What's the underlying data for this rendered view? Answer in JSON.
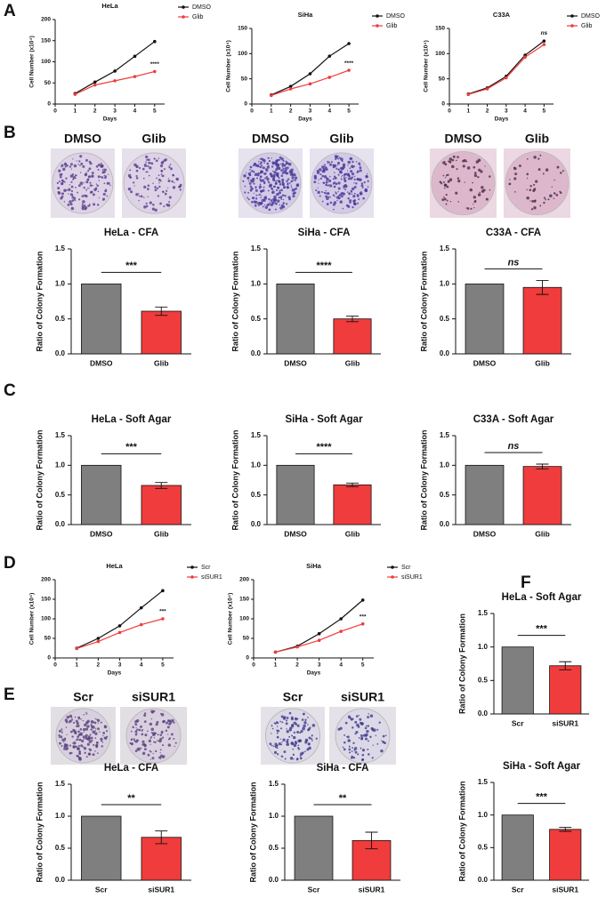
{
  "panel_labels": [
    "A",
    "B",
    "C",
    "D",
    "E",
    "F"
  ],
  "photo_labels": [
    [
      "DMSO",
      "Glib"
    ],
    [
      "DMSO",
      "Glib"
    ],
    [
      "DMSO",
      "Glib"
    ],
    [
      "Scr",
      "siSUR1"
    ],
    [
      "Scr",
      "siSUR1"
    ]
  ],
  "chart_data": [
    {
      "type": "line",
      "title": "HeLa",
      "xlabel": "Days",
      "ylabel": "Cell Number (x10⁴)",
      "x": [
        1,
        2,
        3,
        4,
        5
      ],
      "xlim": [
        0,
        5.5
      ],
      "xticks": [
        0,
        1,
        2,
        3,
        4,
        5
      ],
      "ylim": [
        0,
        200
      ],
      "yticks": [
        0,
        50,
        100,
        150,
        200
      ],
      "annotation": "****",
      "series": [
        {
          "name": "DMSO",
          "color": "#111111",
          "values": [
            25,
            52,
            78,
            113,
            148
          ]
        },
        {
          "name": "Glib",
          "color": "#f03c3c",
          "values": [
            23,
            45,
            55,
            65,
            77
          ]
        }
      ]
    },
    {
      "type": "line",
      "title": "SiHa",
      "xlabel": "Days",
      "ylabel": "Cell Number (x10⁴)",
      "x": [
        1,
        2,
        3,
        4,
        5
      ],
      "xlim": [
        0,
        5.5
      ],
      "xticks": [
        0,
        1,
        2,
        3,
        4,
        5
      ],
      "ylim": [
        0,
        150
      ],
      "yticks": [
        0,
        50,
        100,
        150
      ],
      "annotation": "****",
      "series": [
        {
          "name": "DMSO",
          "color": "#111111",
          "values": [
            18,
            35,
            60,
            95,
            120
          ]
        },
        {
          "name": "Glib",
          "color": "#f03c3c",
          "values": [
            17,
            30,
            40,
            53,
            67
          ]
        }
      ]
    },
    {
      "type": "line",
      "title": "C33A",
      "xlabel": "Days",
      "ylabel": "Cell Number (x10⁴)",
      "x": [
        1,
        2,
        3,
        4,
        5
      ],
      "xlim": [
        0,
        5.5
      ],
      "xticks": [
        0,
        1,
        2,
        3,
        4,
        5
      ],
      "ylim": [
        0,
        150
      ],
      "yticks": [
        0,
        50,
        100,
        150
      ],
      "annotation": "ns",
      "annotation_italic": true,
      "series": [
        {
          "name": "DMSO",
          "color": "#111111",
          "values": [
            20,
            32,
            55,
            97,
            125
          ]
        },
        {
          "name": "Glib",
          "color": "#f03c3c",
          "values": [
            19,
            30,
            52,
            93,
            118
          ]
        }
      ]
    },
    {
      "type": "bar",
      "title": "HeLa - CFA",
      "ylabel": "Ratio of Colony Formation",
      "categories": [
        "DMSO",
        "Glib"
      ],
      "values": [
        1,
        0.61
      ],
      "errors": [
        0,
        0.06
      ],
      "colors": [
        "#7f7f7f",
        "#f03c3c"
      ],
      "ylim": [
        0,
        1.5
      ],
      "yticks": [
        {
          "value": 0,
          "label": "0.0"
        },
        0.5,
        {
          "value": 1,
          "label": "1.0"
        },
        1.5
      ],
      "annotation": "***"
    },
    {
      "type": "bar",
      "title": "SiHa - CFA",
      "ylabel": "Ratio of Colony Formation",
      "categories": [
        "DMSO",
        "Glib"
      ],
      "values": [
        1,
        0.5
      ],
      "errors": [
        0,
        0.04
      ],
      "colors": [
        "#7f7f7f",
        "#f03c3c"
      ],
      "ylim": [
        0,
        1.5
      ],
      "yticks": [
        {
          "value": 0,
          "label": "0.0"
        },
        0.5,
        {
          "value": 1,
          "label": "1.0"
        },
        1.5
      ],
      "annotation": "****"
    },
    {
      "type": "bar",
      "title": "C33A - CFA",
      "ylabel": "Ratio of Colony Formation",
      "categories": [
        "DMSO",
        "Glib"
      ],
      "values": [
        1,
        0.95
      ],
      "errors": [
        0,
        0.1
      ],
      "colors": [
        "#7f7f7f",
        "#f03c3c"
      ],
      "ylim": [
        0,
        1.5
      ],
      "yticks": [
        {
          "value": 0,
          "label": "0.0"
        },
        0.5,
        {
          "value": 1,
          "label": "1.0"
        },
        1.5
      ],
      "annotation": "ns",
      "annotation_italic": true
    },
    {
      "type": "bar",
      "title": "HeLa - Soft Agar",
      "ylabel": "Ratio of Colony Formation",
      "categories": [
        "DMSO",
        "Glib"
      ],
      "values": [
        1,
        0.66
      ],
      "errors": [
        0,
        0.05
      ],
      "colors": [
        "#7f7f7f",
        "#f03c3c"
      ],
      "ylim": [
        0,
        1.5
      ],
      "yticks": [
        {
          "value": 0,
          "label": "0.0"
        },
        0.5,
        {
          "value": 1,
          "label": "1.0"
        },
        1.5
      ],
      "annotation": "***"
    },
    {
      "type": "bar",
      "title": "SiHa - Soft Agar",
      "ylabel": "Ratio of Colony Formation",
      "categories": [
        "DMSO",
        "Glib"
      ],
      "values": [
        1,
        0.67
      ],
      "errors": [
        0,
        0.03
      ],
      "colors": [
        "#7f7f7f",
        "#f03c3c"
      ],
      "ylim": [
        0,
        1.5
      ],
      "yticks": [
        {
          "value": 0,
          "label": "0.0"
        },
        0.5,
        {
          "value": 1,
          "label": "1.0"
        },
        1.5
      ],
      "annotation": "****"
    },
    {
      "type": "bar",
      "title": "C33A - Soft Agar",
      "ylabel": "Ratio of Colony Formation",
      "categories": [
        "DMSO",
        "Glib"
      ],
      "values": [
        1,
        0.98
      ],
      "errors": [
        0,
        0.04
      ],
      "colors": [
        "#7f7f7f",
        "#f03c3c"
      ],
      "ylim": [
        0,
        1.5
      ],
      "yticks": [
        {
          "value": 0,
          "label": "0.0"
        },
        0.5,
        {
          "value": 1,
          "label": "1.0"
        },
        1.5
      ],
      "annotation": "ns",
      "annotation_italic": true
    },
    {
      "type": "line",
      "title": "HeLa",
      "xlabel": "Days",
      "ylabel": "Cell Number (x10⁴)",
      "x": [
        1,
        2,
        3,
        4,
        5
      ],
      "xlim": [
        0,
        5.5
      ],
      "xticks": [
        0,
        1,
        2,
        3,
        4,
        5
      ],
      "ylim": [
        0,
        200
      ],
      "yticks": [
        0,
        50,
        100,
        150,
        200
      ],
      "annotation": "***",
      "series": [
        {
          "name": "Scr",
          "color": "#111111",
          "values": [
            25,
            50,
            82,
            128,
            172
          ]
        },
        {
          "name": "siSUR1",
          "color": "#f03c3c",
          "values": [
            24,
            42,
            65,
            85,
            100
          ]
        }
      ]
    },
    {
      "type": "line",
      "title": "SiHa",
      "xlabel": "Days",
      "ylabel": "Cell Number (x10⁴)",
      "x": [
        1,
        2,
        3,
        4,
        5
      ],
      "xlim": [
        0,
        5.5
      ],
      "xticks": [
        0,
        1,
        2,
        3,
        4,
        5
      ],
      "ylim": [
        0,
        200
      ],
      "yticks": [
        0,
        50,
        100,
        150,
        200
      ],
      "annotation": "***",
      "series": [
        {
          "name": "Scr",
          "color": "#111111",
          "values": [
            15,
            30,
            62,
            100,
            148
          ]
        },
        {
          "name": "siSUR1",
          "color": "#f03c3c",
          "values": [
            15,
            28,
            45,
            68,
            87
          ]
        }
      ]
    },
    {
      "type": "bar",
      "title": "HeLa - CFA",
      "ylabel": "Ratio of Colony Formation",
      "categories": [
        "Scr",
        "siSUR1"
      ],
      "values": [
        1,
        0.67
      ],
      "errors": [
        0,
        0.1
      ],
      "colors": [
        "#7f7f7f",
        "#f03c3c"
      ],
      "ylim": [
        0,
        1.5
      ],
      "yticks": [
        {
          "value": 0,
          "label": "0.0"
        },
        0.5,
        {
          "value": 1,
          "label": "1.0"
        },
        1.5
      ],
      "annotation": "**"
    },
    {
      "type": "bar",
      "title": "SiHa - CFA",
      "ylabel": "Ratio of Colony Formation",
      "categories": [
        "Scr",
        "siSUR1"
      ],
      "values": [
        1,
        0.62
      ],
      "errors": [
        0,
        0.13
      ],
      "colors": [
        "#7f7f7f",
        "#f03c3c"
      ],
      "ylim": [
        0,
        1.5
      ],
      "yticks": [
        {
          "value": 0,
          "label": "0.0"
        },
        0.5,
        {
          "value": 1,
          "label": "1.0"
        },
        1.5
      ],
      "annotation": "**"
    },
    {
      "type": "bar",
      "title": "HeLa - Soft Agar",
      "ylabel": "Ratio of Colony Formation",
      "categories": [
        "Scr",
        "siSUR1"
      ],
      "values": [
        1,
        0.72
      ],
      "errors": [
        0,
        0.06
      ],
      "colors": [
        "#7f7f7f",
        "#f03c3c"
      ],
      "ylim": [
        0,
        1.5
      ],
      "yticks": [
        {
          "value": 0,
          "label": "0.0"
        },
        0.5,
        {
          "value": 1,
          "label": "1.0"
        },
        1.5
      ],
      "annotation": "***"
    },
    {
      "type": "bar",
      "title": "SiHa - Soft Agar",
      "ylabel": "Ratio of Colony Formation",
      "categories": [
        "Scr",
        "siSUR1"
      ],
      "values": [
        1,
        0.78
      ],
      "errors": [
        0,
        0.03
      ],
      "colors": [
        "#7f7f7f",
        "#f03c3c"
      ],
      "ylim": [
        0,
        1.5
      ],
      "yticks": [
        {
          "value": 0,
          "label": "0.0"
        },
        0.5,
        {
          "value": 1,
          "label": "1.0"
        },
        1.5
      ],
      "annotation": "***"
    }
  ]
}
